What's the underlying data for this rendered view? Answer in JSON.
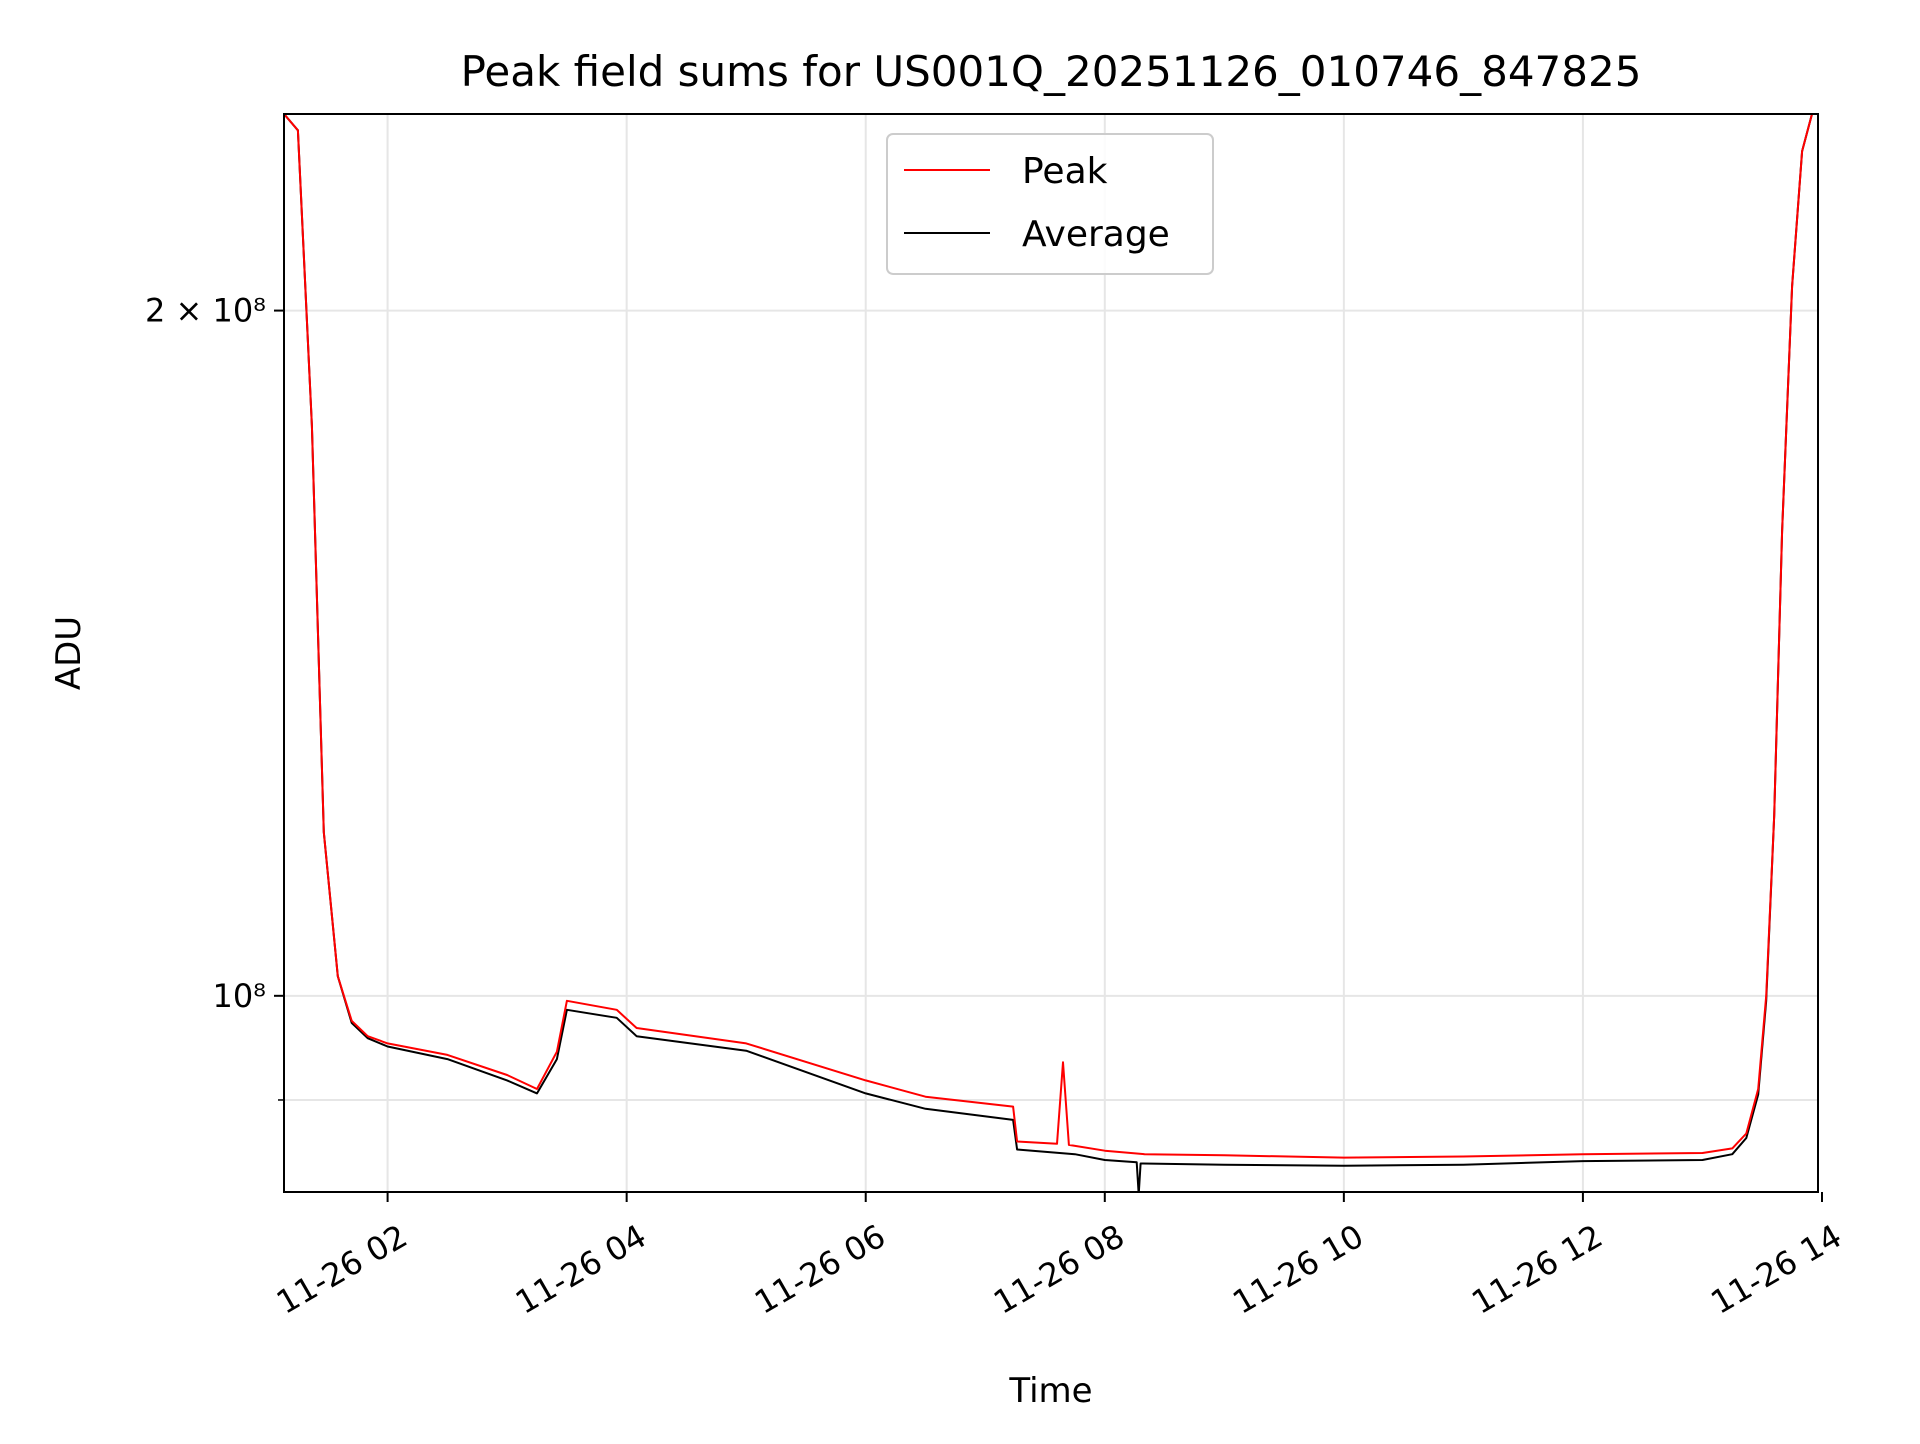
{
  "chart_data": {
    "type": "line",
    "title": "Peak field sums for US001Q_20251126_010746_847825",
    "xlabel": "Time",
    "ylabel": "ADU",
    "x_axis": {
      "scale": "time",
      "range": [
        "2025-11-26 01:08",
        "2025-11-26 13:58"
      ],
      "ticks": [
        {
          "value": "2025-11-26 02:00",
          "label": "11-26 02"
        },
        {
          "value": "2025-11-26 04:00",
          "label": "11-26 04"
        },
        {
          "value": "2025-11-26 06:00",
          "label": "11-26 06"
        },
        {
          "value": "2025-11-26 08:00",
          "label": "11-26 08"
        },
        {
          "value": "2025-11-26 10:00",
          "label": "11-26 10"
        },
        {
          "value": "2025-11-26 12:00",
          "label": "11-26 12"
        },
        {
          "value": "2025-11-26 14:00",
          "label": "11-26 14"
        }
      ]
    },
    "y_axis": {
      "scale": "log",
      "range": [
        82000000,
        244000000
      ],
      "major_ticks": [
        {
          "value": 100000000,
          "label": "10⁸"
        },
        {
          "value": 200000000,
          "label": "2 × 10⁸"
        }
      ],
      "minor_ticks": [
        90000000
      ]
    },
    "grid": true,
    "legend": {
      "position": "top-center"
    },
    "series": [
      {
        "name": "Peak",
        "color": "#ff0000",
        "x": [
          "2025-11-26 01:08",
          "2025-11-26 01:15",
          "2025-11-26 01:22",
          "2025-11-26 01:28",
          "2025-11-26 01:35",
          "2025-11-26 01:42",
          "2025-11-26 01:50",
          "2025-11-26 02:00",
          "2025-11-26 02:30",
          "2025-11-26 03:00",
          "2025-11-26 03:15",
          "2025-11-26 03:25",
          "2025-11-26 03:30",
          "2025-11-26 03:55",
          "2025-11-26 04:05",
          "2025-11-26 05:00",
          "2025-11-26 06:00",
          "2025-11-26 06:30",
          "2025-11-26 07:14",
          "2025-11-26 07:16",
          "2025-11-26 07:36",
          "2025-11-26 07:39",
          "2025-11-26 07:42",
          "2025-11-26 08:00",
          "2025-11-26 08:20",
          "2025-11-26 09:00",
          "2025-11-26 10:00",
          "2025-11-26 11:00",
          "2025-11-26 12:00",
          "2025-11-26 13:00",
          "2025-11-26 13:15",
          "2025-11-26 13:22",
          "2025-11-26 13:28",
          "2025-11-26 13:32",
          "2025-11-26 13:36",
          "2025-11-26 13:40",
          "2025-11-26 13:45",
          "2025-11-26 13:50",
          "2025-11-26 13:55",
          "2025-11-26 13:58"
        ],
        "y": [
          244000000,
          240000000,
          178000000,
          118000000,
          102000000,
          97500000,
          96000000,
          95300000,
          94200000,
          92300000,
          91000000,
          94500000,
          99500000,
          98600000,
          96800000,
          95300000,
          91800000,
          90300000,
          89400000,
          86300000,
          86100000,
          93500000,
          86000000,
          85500000,
          85200000,
          85100000,
          84900000,
          85000000,
          85200000,
          85300000,
          85700000,
          87000000,
          91000000,
          100000000,
          120000000,
          160000000,
          205000000,
          235000000,
          244000000,
          244000000
        ]
      },
      {
        "name": "Average",
        "color": "#000000",
        "x": [
          "2025-11-26 01:08",
          "2025-11-26 01:15",
          "2025-11-26 01:22",
          "2025-11-26 01:28",
          "2025-11-26 01:35",
          "2025-11-26 01:42",
          "2025-11-26 01:50",
          "2025-11-26 02:00",
          "2025-11-26 02:30",
          "2025-11-26 03:00",
          "2025-11-26 03:15",
          "2025-11-26 03:25",
          "2025-11-26 03:30",
          "2025-11-26 03:55",
          "2025-11-26 04:05",
          "2025-11-26 05:00",
          "2025-11-26 06:00",
          "2025-11-26 06:30",
          "2025-11-26 07:14",
          "2025-11-26 07:16",
          "2025-11-26 07:45",
          "2025-11-26 08:00",
          "2025-11-26 08:16",
          "2025-11-26 08:17",
          "2025-11-26 08:18",
          "2025-11-26 09:00",
          "2025-11-26 10:00",
          "2025-11-26 11:00",
          "2025-11-26 12:00",
          "2025-11-26 13:00",
          "2025-11-26 13:15",
          "2025-11-26 13:22",
          "2025-11-26 13:28",
          "2025-11-26 13:32",
          "2025-11-26 13:36",
          "2025-11-26 13:40",
          "2025-11-26 13:45",
          "2025-11-26 13:50",
          "2025-11-26 13:55",
          "2025-11-26 13:58"
        ],
        "y": [
          244000000,
          240000000,
          178000000,
          118000000,
          102000000,
          97300000,
          95800000,
          95000000,
          93800000,
          91800000,
          90600000,
          93800000,
          98600000,
          97800000,
          96000000,
          94600000,
          90600000,
          89200000,
          88200000,
          85600000,
          85200000,
          84700000,
          84500000,
          81800000,
          84400000,
          84300000,
          84200000,
          84300000,
          84600000,
          84700000,
          85200000,
          86600000,
          90500000,
          99500000,
          120000000,
          160000000,
          205000000,
          235000000,
          244000000,
          244000000
        ]
      }
    ]
  }
}
